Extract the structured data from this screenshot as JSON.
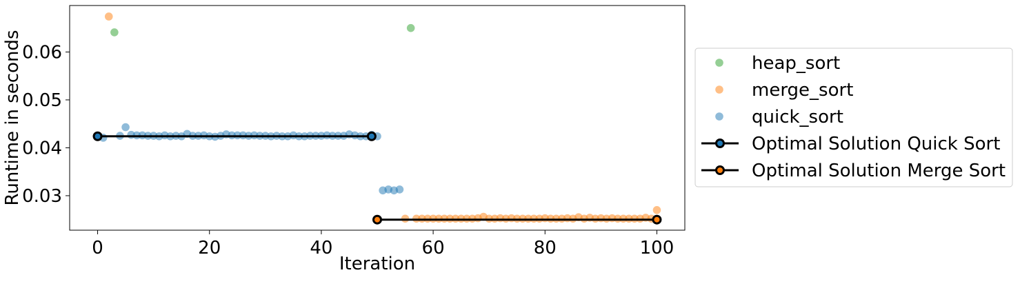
{
  "chart_data": {
    "type": "scatter",
    "xlabel": "Iteration",
    "ylabel": "Runtime in seconds",
    "xlim": [
      -5,
      105
    ],
    "ylim": [
      0.0228,
      0.0697
    ],
    "xticks": [
      0,
      20,
      40,
      60,
      80,
      100
    ],
    "yticks": [
      0.03,
      0.04,
      0.05,
      0.06
    ],
    "xtick_labels": [
      "0",
      "20",
      "40",
      "60",
      "80",
      "100"
    ],
    "ytick_labels": [
      "0.03",
      "0.04",
      "0.05",
      "0.06"
    ],
    "grid": false,
    "legend_position": "right, outside plot",
    "series": [
      {
        "name": "heap_sort",
        "kind": "scatter",
        "color": "#2ca02c",
        "points": [
          [
            3,
            0.0641
          ],
          [
            56,
            0.065
          ]
        ]
      },
      {
        "name": "merge_sort",
        "kind": "scatter",
        "color": "#ff7f0e",
        "points": [
          [
            2,
            0.0674
          ],
          [
            55,
            0.0252
          ],
          [
            57,
            0.0252
          ],
          [
            58,
            0.0252
          ],
          [
            59,
            0.0252
          ],
          [
            60,
            0.0252
          ],
          [
            61,
            0.0252
          ],
          [
            62,
            0.0252
          ],
          [
            63,
            0.0252
          ],
          [
            64,
            0.0252
          ],
          [
            65,
            0.0252
          ],
          [
            66,
            0.0252
          ],
          [
            67,
            0.0252
          ],
          [
            68,
            0.0253
          ],
          [
            69,
            0.0256
          ],
          [
            70,
            0.0252
          ],
          [
            71,
            0.0252
          ],
          [
            72,
            0.0253
          ],
          [
            73,
            0.0252
          ],
          [
            74,
            0.0253
          ],
          [
            75,
            0.0252
          ],
          [
            76,
            0.0252
          ],
          [
            77,
            0.0252
          ],
          [
            78,
            0.0252
          ],
          [
            79,
            0.0252
          ],
          [
            80,
            0.0253
          ],
          [
            81,
            0.0252
          ],
          [
            82,
            0.0252
          ],
          [
            83,
            0.0252
          ],
          [
            84,
            0.0253
          ],
          [
            85,
            0.0252
          ],
          [
            86,
            0.0255
          ],
          [
            87,
            0.0252
          ],
          [
            88,
            0.0254
          ],
          [
            89,
            0.0252
          ],
          [
            90,
            0.0253
          ],
          [
            91,
            0.0252
          ],
          [
            92,
            0.0253
          ],
          [
            93,
            0.0252
          ],
          [
            94,
            0.0252
          ],
          [
            95,
            0.0252
          ],
          [
            96,
            0.0252
          ],
          [
            97,
            0.0252
          ],
          [
            98,
            0.0254
          ],
          [
            99,
            0.0252
          ],
          [
            100,
            0.027
          ]
        ]
      },
      {
        "name": "quick_sort",
        "kind": "scatter",
        "color": "#1f77b4",
        "points": [
          [
            0,
            0.0424
          ],
          [
            1,
            0.0421
          ],
          [
            4,
            0.0425
          ],
          [
            5,
            0.0443
          ],
          [
            6,
            0.0427
          ],
          [
            7,
            0.0426
          ],
          [
            8,
            0.0426
          ],
          [
            9,
            0.0425
          ],
          [
            10,
            0.0425
          ],
          [
            11,
            0.0424
          ],
          [
            12,
            0.0426
          ],
          [
            13,
            0.0424
          ],
          [
            14,
            0.0425
          ],
          [
            15,
            0.0424
          ],
          [
            16,
            0.0429
          ],
          [
            17,
            0.0425
          ],
          [
            18,
            0.0425
          ],
          [
            19,
            0.0426
          ],
          [
            20,
            0.0424
          ],
          [
            21,
            0.0423
          ],
          [
            22,
            0.0425
          ],
          [
            23,
            0.0428
          ],
          [
            24,
            0.0426
          ],
          [
            25,
            0.0426
          ],
          [
            26,
            0.0426
          ],
          [
            27,
            0.0425
          ],
          [
            28,
            0.0426
          ],
          [
            29,
            0.0425
          ],
          [
            30,
            0.0425
          ],
          [
            31,
            0.0424
          ],
          [
            32,
            0.0425
          ],
          [
            33,
            0.0424
          ],
          [
            34,
            0.0424
          ],
          [
            35,
            0.0426
          ],
          [
            36,
            0.0424
          ],
          [
            37,
            0.0424
          ],
          [
            38,
            0.0425
          ],
          [
            39,
            0.0425
          ],
          [
            40,
            0.0425
          ],
          [
            41,
            0.0426
          ],
          [
            42,
            0.0425
          ],
          [
            43,
            0.0425
          ],
          [
            44,
            0.0425
          ],
          [
            45,
            0.0428
          ],
          [
            46,
            0.0426
          ],
          [
            47,
            0.0424
          ],
          [
            48,
            0.0424
          ],
          [
            49,
            0.0427
          ],
          [
            50,
            0.0424
          ],
          [
            51,
            0.0311
          ],
          [
            52,
            0.0313
          ],
          [
            53,
            0.0311
          ],
          [
            54,
            0.0313
          ]
        ]
      },
      {
        "name": "Optimal Solution Quick Sort",
        "kind": "line",
        "line_color": "#000000",
        "marker_face": "#1f77b4",
        "points": [
          [
            0,
            0.0424
          ],
          [
            49,
            0.0424
          ]
        ]
      },
      {
        "name": "Optimal Solution Merge Sort",
        "kind": "line",
        "line_color": "#000000",
        "marker_face": "#ff7f0e",
        "points": [
          [
            50,
            0.025
          ],
          [
            100,
            0.025
          ]
        ]
      }
    ],
    "legend": {
      "entries": [
        "heap_sort",
        "merge_sort",
        "quick_sort",
        "Optimal Solution Quick Sort",
        "Optimal Solution Merge Sort"
      ]
    }
  }
}
